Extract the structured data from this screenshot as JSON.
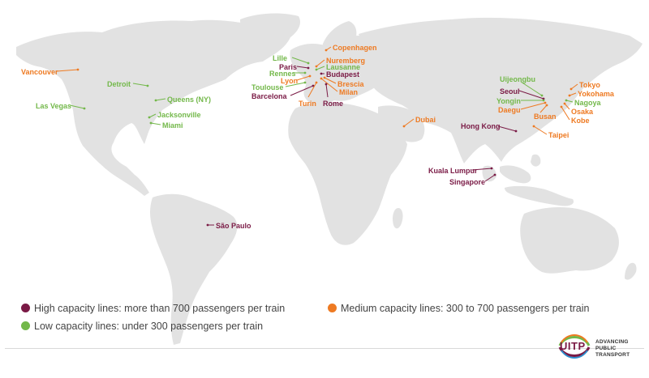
{
  "colors": {
    "high": "#7a1a45",
    "medium": "#ee7a22",
    "low": "#73b84a",
    "land": "#e2e2e2"
  },
  "cities": [
    {
      "name": "Vancouver",
      "capacity": "medium"
    },
    {
      "name": "Detroit",
      "capacity": "low"
    },
    {
      "name": "Queens (NY)",
      "capacity": "low"
    },
    {
      "name": "Las Vegas",
      "capacity": "low"
    },
    {
      "name": "Jacksonville",
      "capacity": "low"
    },
    {
      "name": "Miami",
      "capacity": "low"
    },
    {
      "name": "São Paulo",
      "capacity": "high"
    },
    {
      "name": "Copenhagen",
      "capacity": "medium"
    },
    {
      "name": "Lille",
      "capacity": "low"
    },
    {
      "name": "Nuremberg",
      "capacity": "medium"
    },
    {
      "name": "Paris",
      "capacity": "high"
    },
    {
      "name": "Lausanne",
      "capacity": "low"
    },
    {
      "name": "Rennes",
      "capacity": "low"
    },
    {
      "name": "Budapest",
      "capacity": "high"
    },
    {
      "name": "Lyon",
      "capacity": "medium"
    },
    {
      "name": "Brescia",
      "capacity": "medium"
    },
    {
      "name": "Toulouse",
      "capacity": "low"
    },
    {
      "name": "Milan",
      "capacity": "medium"
    },
    {
      "name": "Barcelona",
      "capacity": "high"
    },
    {
      "name": "Turin",
      "capacity": "medium"
    },
    {
      "name": "Rome",
      "capacity": "high"
    },
    {
      "name": "Dubai",
      "capacity": "medium"
    },
    {
      "name": "Uijeongbu",
      "capacity": "low"
    },
    {
      "name": "Seoul",
      "capacity": "high"
    },
    {
      "name": "Yongin",
      "capacity": "low"
    },
    {
      "name": "Daegu",
      "capacity": "medium"
    },
    {
      "name": "Busan",
      "capacity": "medium"
    },
    {
      "name": "Tokyo",
      "capacity": "medium"
    },
    {
      "name": "Yokohama",
      "capacity": "medium"
    },
    {
      "name": "Nagoya",
      "capacity": "low"
    },
    {
      "name": "Osaka",
      "capacity": "medium"
    },
    {
      "name": "Kobe",
      "capacity": "medium"
    },
    {
      "name": "Hong Kong",
      "capacity": "high"
    },
    {
      "name": "Taipei",
      "capacity": "medium"
    },
    {
      "name": "Kuala Lumpur",
      "capacity": "high"
    },
    {
      "name": "Singapore",
      "capacity": "high"
    }
  ],
  "legend": {
    "high": "High capacity lines: more than 700 passengers per train",
    "medium": "Medium capacity lines: 300 to 700 passengers per train",
    "low": "Low capacity lines: under 300 passengers per train"
  },
  "logo": {
    "acronym": "UITP",
    "line1": "ADVANCING",
    "line2": "PUBLIC",
    "line3": "TRANSPORT"
  }
}
